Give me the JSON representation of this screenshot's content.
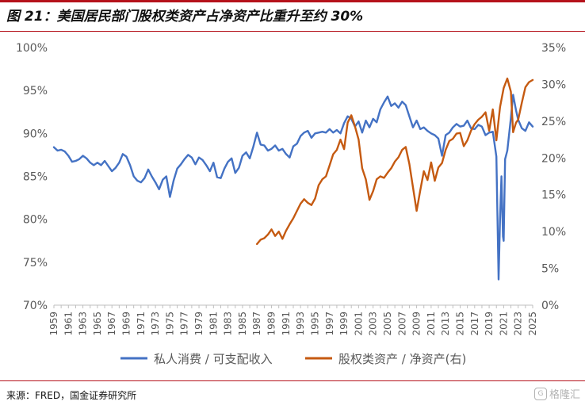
{
  "title": "图 21：美国居民部门股权类资产占净资产比重升至约 30%",
  "source": "来源：FRED，国金证券研究所",
  "watermark": "格隆汇",
  "chart_data": {
    "type": "line",
    "title": "",
    "xlabel": "",
    "ylabel": "",
    "x_ticks": [
      "1959",
      "1961",
      "1963",
      "1965",
      "1967",
      "1969",
      "1971",
      "1973",
      "1975",
      "1977",
      "1979",
      "1981",
      "1983",
      "1985",
      "1987",
      "1989",
      "1991",
      "1993",
      "1995",
      "1997",
      "1999",
      "2001",
      "2003",
      "2005",
      "2007",
      "2009",
      "2011",
      "2013",
      "2015",
      "2017",
      "2019",
      "2021",
      "2023",
      "2025"
    ],
    "xlim": [
      1959,
      2025
    ],
    "y_left": {
      "ylim": [
        70,
        100
      ],
      "ticks": [
        "70%",
        "75%",
        "80%",
        "85%",
        "90%",
        "95%",
        "100%"
      ],
      "tick_values": [
        70,
        75,
        80,
        85,
        90,
        95,
        100
      ]
    },
    "y_right": {
      "ylim": [
        0,
        35
      ],
      "ticks": [
        "0%",
        "5%",
        "10%",
        "15%",
        "20%",
        "25%",
        "30%",
        "35%"
      ],
      "tick_values": [
        0,
        5,
        10,
        15,
        20,
        25,
        30,
        35
      ]
    },
    "grid": false,
    "legend_position": "bottom",
    "series": [
      {
        "name": "私人消费 / 可支配收入",
        "axis": "left",
        "color": "#4472c4",
        "points": [
          [
            1959.0,
            88.4
          ],
          [
            1959.5,
            88.0
          ],
          [
            1960.0,
            88.1
          ],
          [
            1960.5,
            87.9
          ],
          [
            1961.0,
            87.4
          ],
          [
            1961.5,
            86.7
          ],
          [
            1962.0,
            86.8
          ],
          [
            1962.5,
            87.0
          ],
          [
            1963.0,
            87.4
          ],
          [
            1963.5,
            87.1
          ],
          [
            1964.0,
            86.6
          ],
          [
            1964.5,
            86.3
          ],
          [
            1965.0,
            86.6
          ],
          [
            1965.5,
            86.3
          ],
          [
            1966.0,
            86.8
          ],
          [
            1966.5,
            86.2
          ],
          [
            1967.0,
            85.6
          ],
          [
            1967.5,
            86.0
          ],
          [
            1968.0,
            86.6
          ],
          [
            1968.5,
            87.6
          ],
          [
            1969.0,
            87.3
          ],
          [
            1969.5,
            86.3
          ],
          [
            1970.0,
            85.0
          ],
          [
            1970.5,
            84.5
          ],
          [
            1971.0,
            84.3
          ],
          [
            1971.5,
            84.8
          ],
          [
            1972.0,
            85.8
          ],
          [
            1972.5,
            85.0
          ],
          [
            1973.0,
            84.3
          ],
          [
            1973.5,
            83.5
          ],
          [
            1974.0,
            84.6
          ],
          [
            1974.5,
            85.0
          ],
          [
            1975.0,
            82.6
          ],
          [
            1975.5,
            84.5
          ],
          [
            1976.0,
            85.9
          ],
          [
            1976.5,
            86.4
          ],
          [
            1977.0,
            87.0
          ],
          [
            1977.5,
            87.5
          ],
          [
            1978.0,
            87.2
          ],
          [
            1978.5,
            86.4
          ],
          [
            1979.0,
            87.2
          ],
          [
            1979.5,
            86.9
          ],
          [
            1980.0,
            86.3
          ],
          [
            1980.5,
            85.6
          ],
          [
            1981.0,
            86.6
          ],
          [
            1981.5,
            84.9
          ],
          [
            1982.0,
            84.8
          ],
          [
            1982.5,
            85.9
          ],
          [
            1983.0,
            86.7
          ],
          [
            1983.5,
            87.1
          ],
          [
            1984.0,
            85.4
          ],
          [
            1984.5,
            86.0
          ],
          [
            1985.0,
            87.4
          ],
          [
            1985.5,
            87.8
          ],
          [
            1986.0,
            87.1
          ],
          [
            1986.5,
            88.5
          ],
          [
            1987.0,
            90.1
          ],
          [
            1987.5,
            88.7
          ],
          [
            1988.0,
            88.6
          ],
          [
            1988.5,
            88.0
          ],
          [
            1989.0,
            88.2
          ],
          [
            1989.5,
            88.6
          ],
          [
            1990.0,
            88.0
          ],
          [
            1990.5,
            88.2
          ],
          [
            1991.0,
            87.6
          ],
          [
            1991.5,
            87.2
          ],
          [
            1992.0,
            88.5
          ],
          [
            1992.5,
            88.8
          ],
          [
            1993.0,
            89.7
          ],
          [
            1993.5,
            90.1
          ],
          [
            1994.0,
            90.3
          ],
          [
            1994.5,
            89.5
          ],
          [
            1995.0,
            90.0
          ],
          [
            1995.5,
            90.1
          ],
          [
            1996.0,
            90.2
          ],
          [
            1996.5,
            90.1
          ],
          [
            1997.0,
            90.5
          ],
          [
            1997.5,
            90.1
          ],
          [
            1998.0,
            90.4
          ],
          [
            1998.5,
            90.0
          ],
          [
            1999.0,
            91.2
          ],
          [
            1999.5,
            92.0
          ],
          [
            2000.0,
            91.7
          ],
          [
            2000.5,
            90.8
          ],
          [
            2001.0,
            91.4
          ],
          [
            2001.5,
            90.1
          ],
          [
            2002.0,
            91.5
          ],
          [
            2002.5,
            90.7
          ],
          [
            2003.0,
            91.7
          ],
          [
            2003.5,
            91.3
          ],
          [
            2004.0,
            92.8
          ],
          [
            2004.5,
            93.6
          ],
          [
            2005.0,
            94.3
          ],
          [
            2005.5,
            93.2
          ],
          [
            2006.0,
            93.5
          ],
          [
            2006.5,
            93.0
          ],
          [
            2007.0,
            93.7
          ],
          [
            2007.5,
            93.3
          ],
          [
            2008.0,
            92.0
          ],
          [
            2008.5,
            90.7
          ],
          [
            2009.0,
            91.5
          ],
          [
            2009.5,
            90.5
          ],
          [
            2010.0,
            90.7
          ],
          [
            2010.5,
            90.3
          ],
          [
            2011.0,
            90.0
          ],
          [
            2011.5,
            89.8
          ],
          [
            2012.0,
            89.4
          ],
          [
            2012.5,
            87.4
          ],
          [
            2013.0,
            89.8
          ],
          [
            2013.5,
            90.1
          ],
          [
            2014.0,
            90.7
          ],
          [
            2014.5,
            91.1
          ],
          [
            2015.0,
            90.8
          ],
          [
            2015.5,
            90.9
          ],
          [
            2016.0,
            91.5
          ],
          [
            2016.5,
            90.6
          ],
          [
            2017.0,
            90.5
          ],
          [
            2017.5,
            91.0
          ],
          [
            2018.0,
            90.8
          ],
          [
            2018.5,
            89.8
          ],
          [
            2019.0,
            90.1
          ],
          [
            2019.5,
            90.2
          ],
          [
            2020.0,
            87.3
          ],
          [
            2020.3,
            73.0
          ],
          [
            2020.5,
            80.0
          ],
          [
            2020.7,
            85.0
          ],
          [
            2020.9,
            78.0
          ],
          [
            2021.0,
            77.5
          ],
          [
            2021.2,
            87.0
          ],
          [
            2021.5,
            88.0
          ],
          [
            2022.0,
            91.8
          ],
          [
            2022.3,
            94.5
          ],
          [
            2022.7,
            92.7
          ],
          [
            2023.0,
            91.6
          ],
          [
            2023.5,
            90.6
          ],
          [
            2024.0,
            90.3
          ],
          [
            2024.5,
            91.3
          ],
          [
            2025.0,
            90.8
          ]
        ]
      },
      {
        "name": "股权类资产 / 净资产(右)",
        "axis": "right",
        "color": "#c55a11",
        "points": [
          [
            1987.0,
            8.3
          ],
          [
            1987.5,
            8.9
          ],
          [
            1988.0,
            9.1
          ],
          [
            1988.5,
            9.6
          ],
          [
            1989.0,
            10.3
          ],
          [
            1989.5,
            9.4
          ],
          [
            1990.0,
            10.0
          ],
          [
            1990.5,
            9.0
          ],
          [
            1991.0,
            10.1
          ],
          [
            1991.5,
            11.0
          ],
          [
            1992.0,
            11.8
          ],
          [
            1992.5,
            12.8
          ],
          [
            1993.0,
            13.8
          ],
          [
            1993.5,
            14.4
          ],
          [
            1994.0,
            13.9
          ],
          [
            1994.5,
            13.6
          ],
          [
            1995.0,
            14.5
          ],
          [
            1995.5,
            16.3
          ],
          [
            1996.0,
            17.1
          ],
          [
            1996.5,
            17.5
          ],
          [
            1997.0,
            19.0
          ],
          [
            1997.5,
            20.5
          ],
          [
            1998.0,
            21.1
          ],
          [
            1998.5,
            22.5
          ],
          [
            1999.0,
            21.2
          ],
          [
            1999.5,
            24.8
          ],
          [
            2000.0,
            25.8
          ],
          [
            2000.5,
            24.3
          ],
          [
            2001.0,
            22.5
          ],
          [
            2001.5,
            18.6
          ],
          [
            2002.0,
            17.1
          ],
          [
            2002.5,
            14.3
          ],
          [
            2003.0,
            15.5
          ],
          [
            2003.5,
            17.1
          ],
          [
            2004.0,
            17.5
          ],
          [
            2004.5,
            17.3
          ],
          [
            2005.0,
            18.0
          ],
          [
            2005.5,
            18.6
          ],
          [
            2006.0,
            19.5
          ],
          [
            2006.5,
            20.1
          ],
          [
            2007.0,
            21.1
          ],
          [
            2007.5,
            21.5
          ],
          [
            2008.0,
            19.2
          ],
          [
            2008.5,
            16.0
          ],
          [
            2009.0,
            12.8
          ],
          [
            2009.5,
            15.6
          ],
          [
            2010.0,
            18.2
          ],
          [
            2010.5,
            17.0
          ],
          [
            2011.0,
            19.4
          ],
          [
            2011.5,
            16.9
          ],
          [
            2012.0,
            18.7
          ],
          [
            2012.5,
            19.3
          ],
          [
            2013.0,
            21.1
          ],
          [
            2013.5,
            22.3
          ],
          [
            2014.0,
            22.6
          ],
          [
            2014.5,
            23.3
          ],
          [
            2015.0,
            23.4
          ],
          [
            2015.5,
            21.6
          ],
          [
            2016.0,
            22.4
          ],
          [
            2016.5,
            23.7
          ],
          [
            2017.0,
            24.6
          ],
          [
            2017.5,
            25.2
          ],
          [
            2018.0,
            25.6
          ],
          [
            2018.5,
            26.2
          ],
          [
            2019.0,
            23.7
          ],
          [
            2019.5,
            26.6
          ],
          [
            2020.0,
            22.4
          ],
          [
            2020.5,
            26.9
          ],
          [
            2021.0,
            29.5
          ],
          [
            2021.5,
            30.8
          ],
          [
            2022.0,
            29.0
          ],
          [
            2022.3,
            23.5
          ],
          [
            2022.7,
            24.8
          ],
          [
            2023.0,
            25.2
          ],
          [
            2023.5,
            27.5
          ],
          [
            2024.0,
            29.6
          ],
          [
            2024.5,
            30.3
          ],
          [
            2025.0,
            30.6
          ]
        ]
      }
    ]
  }
}
